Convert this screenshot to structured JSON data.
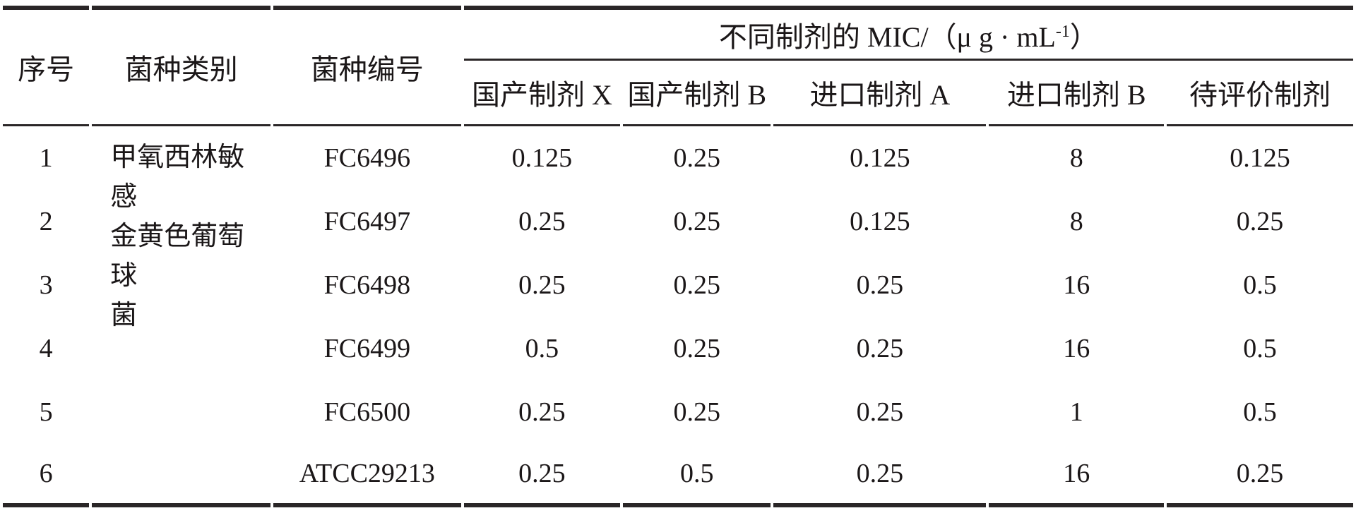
{
  "table": {
    "columns": {
      "col_index": "序号",
      "col_category": "菌种类别",
      "col_strain_id": "菌种编号",
      "mic_group": {
        "prefix": "不同制剂的 MIC/（μ g · mL",
        "sup": "-1",
        "suffix": "）"
      },
      "mic_columns": [
        "国产制剂 X",
        "国产制剂 B",
        "进口制剂 A",
        "进口制剂 B",
        "待评价制剂"
      ]
    },
    "category": {
      "line1": "甲氧西林敏感",
      "line2": "金黄色葡萄球",
      "line3": "菌"
    },
    "rows": [
      {
        "index": "1",
        "strain_id": "FC6496",
        "values": [
          "0.125",
          "0.25",
          "0.125",
          "8",
          "0.125"
        ]
      },
      {
        "index": "2",
        "strain_id": "FC6497",
        "values": [
          "0.25",
          "0.25",
          "0.125",
          "8",
          "0.25"
        ]
      },
      {
        "index": "3",
        "strain_id": "FC6498",
        "values": [
          "0.25",
          "0.25",
          "0.25",
          "16",
          "0.5"
        ]
      },
      {
        "index": "4",
        "strain_id": "FC6499",
        "values": [
          "0.5",
          "0.25",
          "0.25",
          "16",
          "0.5"
        ]
      },
      {
        "index": "5",
        "strain_id": "FC6500",
        "values": [
          "0.25",
          "0.25",
          "0.25",
          "1",
          "0.5"
        ]
      },
      {
        "index": "6",
        "strain_id": "ATCC29213",
        "values": [
          "0.25",
          "0.5",
          "0.25",
          "16",
          "0.25"
        ]
      }
    ],
    "colors": {
      "text": "#1b1718",
      "rule": "#2a2627",
      "background": "#ffffff"
    }
  },
  "chart_data": {
    "type": "table",
    "title": "不同制剂的 MIC/（μg·mL-1）",
    "headers": [
      "序号",
      "菌种类别",
      "菌种编号",
      "国产制剂 X",
      "国产制剂 B",
      "进口制剂 A",
      "进口制剂 B",
      "待评价制剂"
    ],
    "rows": [
      [
        "1",
        "甲氧西林敏感金黄色葡萄球菌",
        "FC6496",
        0.125,
        0.25,
        0.125,
        8,
        0.125
      ],
      [
        "2",
        "甲氧西林敏感金黄色葡萄球菌",
        "FC6497",
        0.25,
        0.25,
        0.125,
        8,
        0.25
      ],
      [
        "3",
        "甲氧西林敏感金黄色葡萄球菌",
        "FC6498",
        0.25,
        0.25,
        0.25,
        16,
        0.5
      ],
      [
        "4",
        "甲氧西林敏感金黄色葡萄球菌",
        "FC6499",
        0.5,
        0.25,
        0.25,
        16,
        0.5
      ],
      [
        "5",
        "甲氧西林敏感金黄色葡萄球菌",
        "FC6500",
        0.25,
        0.25,
        0.25,
        1,
        0.5
      ],
      [
        "6",
        "甲氧西林敏感金黄色葡萄球菌",
        "ATCC29213",
        0.25,
        0.5,
        0.25,
        16,
        0.25
      ]
    ]
  }
}
